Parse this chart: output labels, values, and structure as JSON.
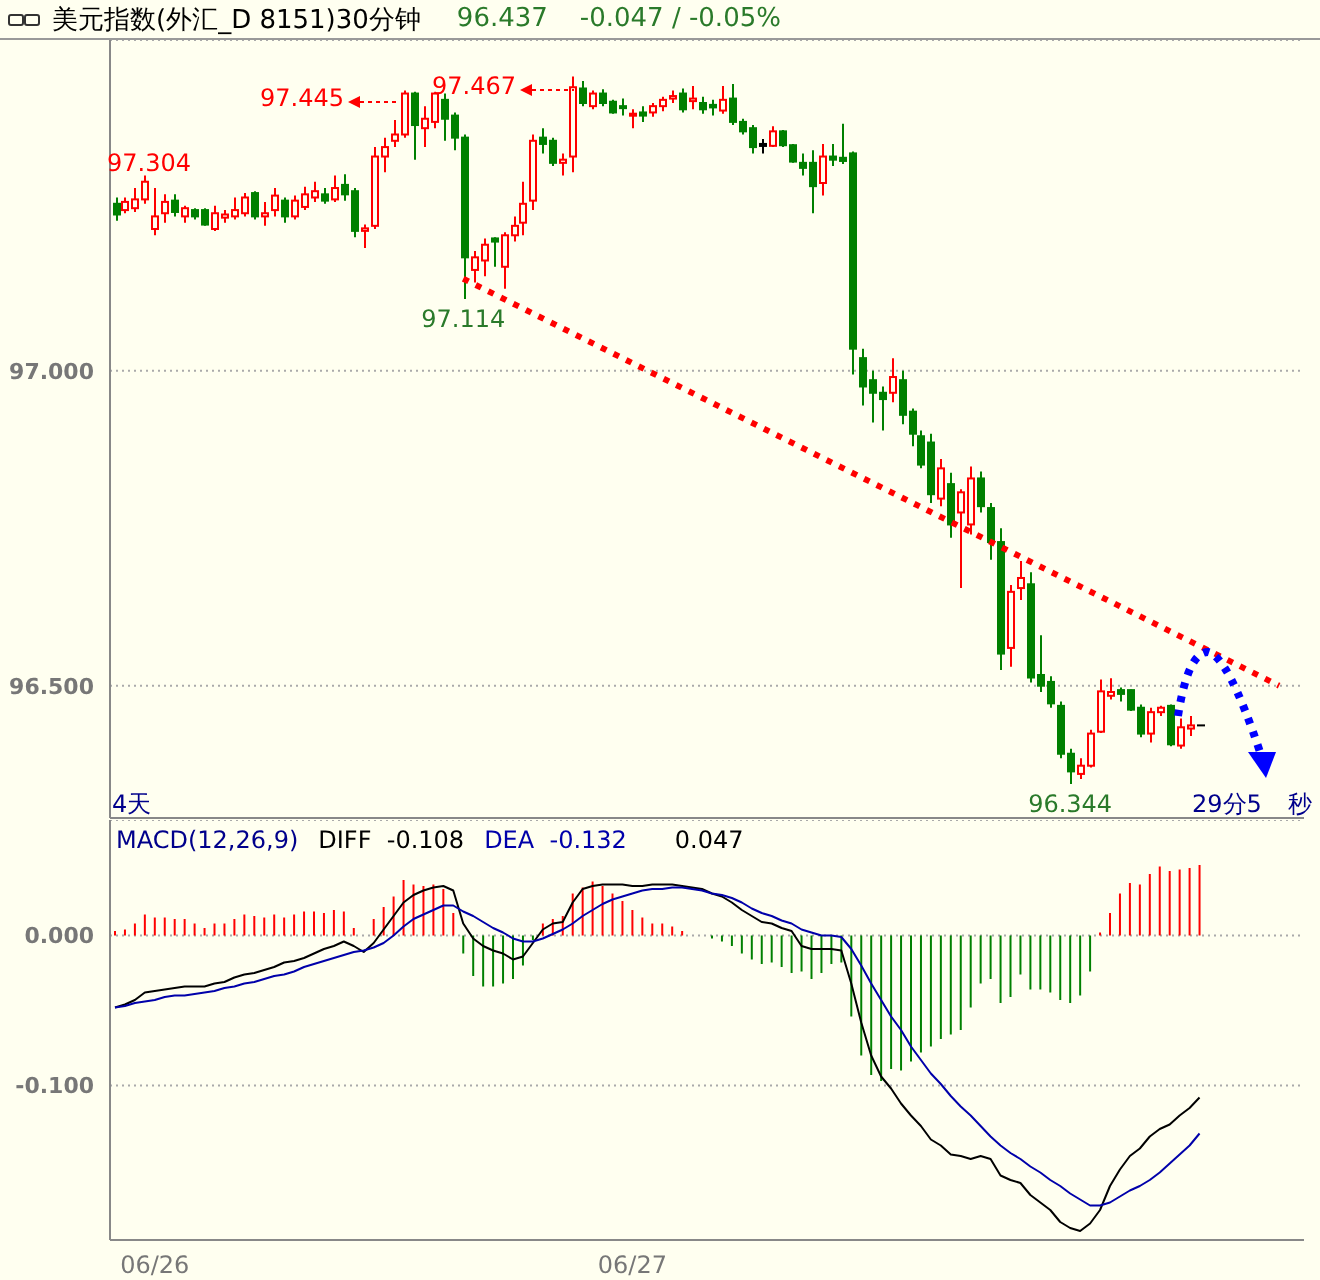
{
  "chart_data": [
    {
      "type": "candlestick",
      "title": "美元指数(外汇_D 8151)30分钟",
      "categories": [
        null,
        null,
        null,
        null,
        null,
        null,
        null,
        null,
        null,
        null,
        null,
        null,
        null,
        null,
        null,
        null,
        null,
        null,
        null,
        null,
        null,
        null,
        null,
        null,
        null,
        null,
        null,
        null,
        null,
        null,
        null,
        null,
        null,
        null,
        null,
        null,
        null,
        null,
        null,
        null,
        null,
        null,
        null,
        null,
        null,
        null,
        null,
        null,
        null,
        null,
        null,
        null,
        null,
        null,
        null,
        null,
        null,
        null,
        null,
        null,
        null,
        null,
        null,
        null,
        null,
        null,
        null,
        null,
        null,
        null,
        null,
        null,
        null,
        null,
        null,
        null,
        null,
        null,
        null,
        null,
        null,
        null,
        null,
        null,
        null,
        null,
        null,
        null,
        null,
        null,
        null,
        null,
        null,
        null,
        null,
        null,
        null,
        null,
        null,
        null,
        null,
        null,
        null,
        null,
        null,
        null,
        null,
        null,
        null,
        null,
        null,
        null,
        null,
        null,
        null,
        null,
        null,
        null,
        null,
        null
      ],
      "ohlc": [
        [
          97.265,
          97.275,
          97.238,
          97.248
        ],
        [
          97.255,
          97.275,
          97.25,
          97.268
        ],
        [
          97.258,
          97.29,
          97.252,
          97.272
        ],
        [
          97.272,
          97.31,
          97.265,
          97.3
        ],
        [
          97.225,
          97.29,
          97.215,
          97.245
        ],
        [
          97.25,
          97.28,
          97.235,
          97.268
        ],
        [
          97.27,
          97.28,
          97.245,
          97.252
        ],
        [
          97.245,
          97.262,
          97.235,
          97.258
        ],
        [
          97.255,
          97.258,
          97.24,
          97.245
        ],
        [
          97.255,
          97.258,
          97.23,
          97.232
        ],
        [
          97.225,
          97.262,
          97.222,
          97.25
        ],
        [
          97.243,
          97.255,
          97.235,
          97.248
        ],
        [
          97.245,
          97.275,
          97.24,
          97.255
        ],
        [
          97.25,
          97.282,
          97.245,
          97.275
        ],
        [
          97.282,
          97.285,
          97.24,
          97.245
        ],
        [
          97.245,
          97.268,
          97.23,
          97.25
        ],
        [
          97.255,
          97.29,
          97.245,
          97.278
        ],
        [
          97.27,
          97.275,
          97.235,
          97.245
        ],
        [
          97.245,
          97.278,
          97.24,
          97.27
        ],
        [
          97.26,
          97.292,
          97.255,
          97.28
        ],
        [
          97.275,
          97.3,
          97.268,
          97.285
        ],
        [
          97.28,
          97.29,
          97.265,
          97.27
        ],
        [
          97.272,
          97.31,
          97.268,
          97.29
        ],
        [
          97.295,
          97.312,
          97.27,
          97.28
        ],
        [
          97.285,
          97.29,
          97.212,
          97.222
        ],
        [
          97.222,
          97.232,
          97.195,
          97.226
        ],
        [
          97.23,
          97.355,
          97.225,
          97.34
        ],
        [
          97.34,
          97.37,
          97.315,
          97.355
        ],
        [
          97.365,
          97.398,
          97.355,
          97.375
        ],
        [
          97.375,
          97.445,
          97.37,
          97.44
        ],
        [
          97.44,
          97.443,
          97.335,
          97.39
        ],
        [
          97.385,
          97.42,
          97.355,
          97.4
        ],
        [
          97.395,
          97.442,
          97.385,
          97.44
        ],
        [
          97.43,
          97.44,
          97.365,
          97.4
        ],
        [
          97.405,
          97.41,
          97.35,
          97.37
        ],
        [
          97.37,
          97.375,
          97.114,
          97.18
        ],
        [
          97.16,
          97.19,
          97.14,
          97.18
        ],
        [
          97.175,
          97.21,
          97.15,
          97.2
        ],
        [
          97.21,
          97.212,
          97.165,
          97.205
        ],
        [
          97.165,
          97.22,
          97.13,
          97.215
        ],
        [
          97.215,
          97.245,
          97.205,
          97.23
        ],
        [
          97.235,
          97.3,
          97.215,
          97.265
        ],
        [
          97.27,
          97.375,
          97.255,
          97.365
        ],
        [
          97.37,
          97.385,
          97.345,
          97.36
        ],
        [
          97.365,
          97.37,
          97.325,
          97.33
        ],
        [
          97.33,
          97.345,
          97.31,
          97.335
        ],
        [
          97.34,
          97.467,
          97.315,
          97.45
        ],
        [
          97.448,
          97.46,
          97.42,
          97.425
        ],
        [
          97.42,
          97.445,
          97.415,
          97.44
        ],
        [
          97.44,
          97.447,
          97.42,
          97.425
        ],
        [
          97.427,
          97.43,
          97.408,
          97.41
        ],
        [
          97.42,
          97.432,
          97.405,
          97.418
        ],
        [
          97.405,
          97.415,
          97.385,
          97.408
        ],
        [
          97.41,
          97.42,
          97.395,
          97.405
        ],
        [
          97.41,
          97.425,
          97.403,
          97.42
        ],
        [
          97.42,
          97.435,
          97.412,
          97.43
        ],
        [
          97.432,
          97.445,
          97.425,
          97.436
        ],
        [
          97.44,
          97.448,
          97.41,
          97.415
        ],
        [
          97.428,
          97.452,
          97.415,
          97.432
        ],
        [
          97.425,
          97.435,
          97.408,
          97.415
        ],
        [
          97.422,
          97.43,
          97.405,
          97.418
        ],
        [
          97.413,
          97.452,
          97.408,
          97.43
        ],
        [
          97.432,
          97.455,
          97.39,
          97.395
        ],
        [
          97.395,
          97.4,
          97.375,
          97.38
        ],
        [
          97.385,
          97.39,
          97.345,
          97.355
        ],
        [
          97.36,
          97.368,
          97.345,
          97.36
        ],
        [
          97.357,
          97.388,
          97.355,
          97.38
        ],
        [
          97.38,
          97.382,
          97.355,
          97.358
        ],
        [
          97.358,
          97.36,
          97.33,
          97.332
        ],
        [
          97.33,
          97.345,
          97.31,
          97.322
        ],
        [
          97.33,
          97.35,
          97.25,
          97.293
        ],
        [
          97.298,
          97.36,
          97.278,
          97.34
        ],
        [
          97.34,
          97.36,
          97.325,
          97.335
        ],
        [
          97.338,
          97.392,
          97.328,
          97.333
        ],
        [
          97.345,
          97.348,
          96.994,
          97.035
        ],
        [
          97.02,
          97.035,
          96.945,
          96.975
        ],
        [
          96.985,
          97.0,
          96.918,
          96.965
        ],
        [
          96.965,
          96.975,
          96.905,
          96.955
        ],
        [
          96.965,
          97.02,
          96.95,
          96.99
        ],
        [
          96.985,
          97.0,
          96.915,
          96.93
        ],
        [
          96.935,
          96.94,
          96.88,
          96.9
        ],
        [
          96.896,
          96.905,
          96.845,
          96.851
        ],
        [
          96.886,
          96.9,
          96.79,
          96.804
        ],
        [
          96.797,
          96.86,
          96.785,
          96.845
        ],
        [
          96.82,
          96.838,
          96.735,
          96.756
        ],
        [
          96.775,
          96.812,
          96.655,
          96.807
        ],
        [
          96.756,
          96.848,
          96.74,
          96.829
        ],
        [
          96.829,
          96.84,
          96.775,
          96.785
        ],
        [
          96.782,
          96.79,
          96.7,
          96.728
        ],
        [
          96.728,
          96.75,
          96.525,
          96.551
        ],
        [
          96.56,
          96.66,
          96.53,
          96.649
        ],
        [
          96.655,
          96.698,
          96.636,
          96.671
        ],
        [
          96.661,
          96.68,
          96.505,
          96.513
        ],
        [
          96.517,
          96.58,
          96.49,
          96.5
        ],
        [
          96.506,
          96.515,
          96.465,
          96.472
        ],
        [
          96.468,
          96.475,
          96.385,
          96.392
        ],
        [
          96.392,
          96.4,
          96.344,
          96.364
        ],
        [
          96.36,
          96.385,
          96.352,
          96.373
        ],
        [
          96.373,
          96.43,
          96.37,
          96.424
        ],
        [
          96.427,
          96.51,
          96.425,
          96.491
        ],
        [
          96.484,
          96.512,
          96.478,
          96.49
        ],
        [
          96.493,
          96.497,
          96.475,
          96.487
        ],
        [
          96.493,
          96.494,
          96.46,
          96.462
        ],
        [
          96.465,
          96.47,
          96.418,
          96.424
        ],
        [
          96.424,
          96.465,
          96.41,
          96.458
        ],
        [
          96.458,
          96.468,
          96.452,
          96.465
        ],
        [
          96.468,
          96.47,
          96.404,
          96.407
        ],
        [
          96.405,
          96.448,
          96.4,
          96.434
        ],
        [
          96.432,
          96.452,
          96.42,
          96.437
        ],
        [
          96.437,
          96.437,
          96.437,
          96.437
        ],
        null,
        null,
        null,
        null,
        null,
        null,
        null,
        null,
        null,
        null
      ],
      "colors": [
        "#008000",
        "#ff0000",
        "#ff0000",
        "#ff0000",
        "#ff0000",
        "#ff0000",
        "#008000",
        "#ff0000",
        "#008000",
        "#008000",
        "#ff0000",
        "#ff0000",
        "#ff0000",
        "#ff0000",
        "#008000",
        "#ff0000",
        "#ff0000",
        "#008000",
        "#ff0000",
        "#ff0000",
        "#ff0000",
        "#008000",
        "#ff0000",
        "#008000",
        "#008000",
        "#ff0000",
        "#ff0000",
        "#ff0000",
        "#ff0000",
        "#ff0000",
        "#008000",
        "#ff0000",
        "#ff0000",
        "#008000",
        "#008000",
        "#008000",
        "#ff0000",
        "#ff0000",
        "#008000",
        "#ff0000",
        "#ff0000",
        "#ff0000",
        "#ff0000",
        "#008000",
        "#008000",
        "#ff0000",
        "#ff0000",
        "#008000",
        "#ff0000",
        "#008000",
        "#008000",
        "#008000",
        "#ff0000",
        "#008000",
        "#ff0000",
        "#ff0000",
        "#ff0000",
        "#008000",
        "#ff0000",
        "#008000",
        "#008000",
        "#ff0000",
        "#008000",
        "#008000",
        "#008000",
        "#000000",
        "#ff0000",
        "#008000",
        "#008000",
        "#008000",
        "#008000",
        "#ff0000",
        "#008000",
        "#008000",
        "#008000",
        "#008000",
        "#008000",
        "#008000",
        "#ff0000",
        "#008000",
        "#008000",
        "#008000",
        "#008000",
        "#ff0000",
        "#008000",
        "#ff0000",
        "#ff0000",
        "#008000",
        "#008000",
        "#008000",
        "#ff0000",
        "#ff0000",
        "#008000",
        "#008000",
        "#008000",
        "#008000",
        "#008000",
        "#ff0000",
        "#ff0000",
        "#ff0000",
        "#ff0000",
        "#008000",
        "#008000",
        "#008000",
        "#ff0000",
        "#ff0000",
        "#008000",
        "#ff0000",
        "#ff0000",
        "#000000",
        null,
        null,
        null,
        null,
        null,
        null,
        null,
        null,
        null,
        null
      ],
      "series": [
        {
          "type": "line",
          "color": "#ff0000",
          "line_style": "dotted",
          "values": [
            null,
            null,
            null,
            null,
            null,
            null,
            null,
            null,
            null,
            null,
            null,
            null,
            null,
            null,
            null,
            null,
            null,
            null,
            null,
            null,
            null,
            null,
            null,
            null,
            null,
            null,
            null,
            null,
            null,
            null,
            null,
            null,
            null,
            null,
            null,
            97.146,
            null,
            null,
            null,
            null,
            null,
            null,
            null,
            null,
            null,
            null,
            null,
            null,
            null,
            null,
            null,
            null,
            null,
            null,
            null,
            null,
            null,
            null,
            null,
            null,
            null,
            null,
            null,
            null,
            null,
            null,
            null,
            null,
            null,
            null,
            null,
            null,
            null,
            null,
            null,
            null,
            null,
            null,
            null,
            null,
            null,
            null,
            null,
            null,
            null,
            null,
            null,
            null,
            null,
            null,
            null,
            null,
            null,
            null,
            null,
            null,
            null,
            null,
            null,
            null,
            null,
            null,
            null,
            null,
            null,
            null,
            null,
            null,
            null,
            null,
            null,
            null,
            null,
            null,
            null,
            null,
            null,
            96.5,
            null,
            null
          ]
        }
      ],
      "ylim": [
        96.29,
        97.525
      ],
      "yticks": [
        {
          "value": 96.5,
          "label": "96.500"
        },
        {
          "value": 97,
          "label": "97.000"
        }
      ],
      "grid": "y",
      "tick_labels": "y",
      "annotations": [
        "96.437",
        "-0.047 / -0.05%",
        "4天",
        "29分5",
        "秒",
        "97.445",
        "97.467",
        {
          "text": "97.304",
          "y": 97.304
        },
        {
          "text": "97.114",
          "y": 97.114
        },
        {
          "text": "96.344",
          "y": 96.344
        }
      ]
    },
    {
      "type": "line",
      "title": "MACD(12,26,9)",
      "categories": [
        null,
        null,
        null,
        null,
        "06/26",
        null,
        null,
        null,
        null,
        null,
        null,
        null,
        null,
        null,
        null,
        null,
        null,
        null,
        null,
        null,
        null,
        null,
        null,
        null,
        null,
        null,
        null,
        null,
        null,
        null,
        null,
        null,
        null,
        null,
        null,
        null,
        null,
        null,
        null,
        null,
        null,
        null,
        null,
        null,
        null,
        null,
        null,
        null,
        null,
        null,
        null,
        null,
        "06/27",
        null,
        null,
        null,
        null,
        null,
        null,
        null,
        null,
        null,
        null,
        null,
        null,
        null,
        null,
        null,
        null,
        null,
        null,
        null,
        null,
        null,
        null,
        null,
        null,
        null,
        null,
        null,
        null,
        null,
        null,
        null,
        null,
        null,
        null,
        null,
        null,
        null,
        null,
        null,
        null,
        null,
        null,
        null,
        null,
        null,
        null,
        null,
        null,
        null,
        null,
        null,
        null,
        null,
        null,
        null,
        null,
        null,
        null,
        null,
        null,
        null,
        null,
        null,
        null,
        null,
        null,
        null
      ],
      "series": [
        {
          "type": "bar",
          "colors": [
            "#ff0000",
            "#ff0000",
            "#ff0000",
            "#ff0000",
            "#ff0000",
            "#ff0000",
            "#ff0000",
            "#ff0000",
            "#ff0000",
            "#ff0000",
            "#ff0000",
            "#ff0000",
            "#ff0000",
            "#ff0000",
            "#ff0000",
            "#ff0000",
            "#ff0000",
            "#ff0000",
            "#ff0000",
            "#ff0000",
            "#ff0000",
            "#ff0000",
            "#ff0000",
            "#ff0000",
            "#ff0000",
            "#ff0000",
            "#ff0000",
            "#ff0000",
            "#ff0000",
            "#ff0000",
            "#ff0000",
            "#ff0000",
            "#ff0000",
            "#ff0000",
            "#ff0000",
            "#008000",
            "#008000",
            "#008000",
            "#008000",
            "#008000",
            "#008000",
            "#008000",
            "#008000",
            "#ff0000",
            "#ff0000",
            "#ff0000",
            "#ff0000",
            "#ff0000",
            "#ff0000",
            "#ff0000",
            "#ff0000",
            "#ff0000",
            "#ff0000",
            "#ff0000",
            "#ff0000",
            "#ff0000",
            "#ff0000",
            "#ff0000",
            "#008000",
            "#008000",
            "#008000",
            "#008000",
            "#008000",
            "#008000",
            "#008000",
            "#008000",
            "#008000",
            "#008000",
            "#008000",
            "#008000",
            "#008000",
            "#008000",
            "#008000",
            "#008000",
            "#008000",
            "#008000",
            "#008000",
            "#008000",
            "#008000",
            "#008000",
            "#008000",
            "#008000",
            "#008000",
            "#008000",
            "#008000",
            "#008000",
            "#008000",
            "#008000",
            "#008000",
            "#008000",
            "#008000",
            "#008000",
            "#008000",
            "#008000",
            "#008000",
            "#008000",
            "#008000",
            "#008000",
            "#008000",
            "#ff0000",
            "#ff0000",
            "#ff0000",
            "#ff0000",
            "#ff0000",
            "#ff0000",
            "#ff0000",
            "#ff0000",
            "#ff0000",
            "#ff0000",
            "#ff0000",
            null,
            null,
            null,
            null,
            null,
            null,
            null,
            null,
            null,
            null
          ],
          "values": [
            0.003,
            0.004,
            0.008,
            0.014,
            0.012,
            0.012,
            0.011,
            0.011,
            0.008,
            0.005,
            0.008,
            0.008,
            0.011,
            0.014,
            0.013,
            0.012,
            0.014,
            0.012,
            0.014,
            0.016,
            0.016,
            0.015,
            0.017,
            0.016,
            0.005,
            null,
            0.011,
            0.019,
            0.026,
            0.037,
            0.034,
            0.033,
            0.034,
            0.031,
            0.015,
            -0.012,
            -0.027,
            -0.034,
            -0.034,
            -0.032,
            -0.029,
            -0.02,
            -0.003,
            0.008,
            0.011,
            0.013,
            0.028,
            0.032,
            0.036,
            0.033,
            0.028,
            0.023,
            0.017,
            0.012,
            0.008,
            0.008,
            0.006,
            0.003,
            null,
            null,
            -0.002,
            -0.004,
            -0.007,
            -0.012,
            -0.016,
            -0.019,
            -0.018,
            -0.021,
            -0.025,
            -0.024,
            -0.029,
            -0.025,
            -0.019,
            -0.018,
            -0.054,
            -0.08,
            -0.093,
            -0.097,
            -0.089,
            -0.09,
            -0.084,
            -0.078,
            -0.074,
            -0.069,
            -0.066,
            -0.063,
            -0.048,
            -0.032,
            -0.029,
            -0.045,
            -0.041,
            -0.026,
            -0.036,
            -0.036,
            -0.038,
            -0.043,
            -0.045,
            -0.04,
            -0.024,
            0.002,
            0.015,
            0.028,
            0.035,
            0.034,
            0.041,
            0.046,
            0.043,
            0.044,
            0.045,
            0.047,
            null,
            null,
            null,
            null,
            null,
            null,
            null,
            null,
            null,
            null
          ]
        },
        {
          "name": "DIFF",
          "color": "#000000",
          "values": [
            -0.048,
            -0.046,
            -0.043,
            -0.038,
            -0.037,
            -0.036,
            -0.035,
            -0.034,
            -0.034,
            -0.034,
            -0.032,
            -0.031,
            -0.028,
            -0.026,
            -0.025,
            -0.023,
            -0.021,
            -0.018,
            -0.017,
            -0.015,
            -0.012,
            -0.009,
            -0.007,
            -0.004,
            -0.007,
            -0.011,
            -0.005,
            0.004,
            0.013,
            0.022,
            0.027,
            0.03,
            0.032,
            0.033,
            0.03,
            0.008,
            -0.002,
            -0.007,
            -0.01,
            -0.012,
            -0.016,
            -0.014,
            -0.005,
            0.004,
            0.008,
            0.009,
            0.022,
            0.031,
            0.033,
            0.034,
            0.034,
            0.034,
            0.033,
            0.033,
            0.034,
            0.034,
            0.034,
            0.033,
            0.032,
            0.031,
            0.028,
            0.026,
            0.022,
            0.017,
            0.013,
            0.009,
            0.008,
            0.005,
            0.003,
            -0.007,
            -0.009,
            -0.009,
            -0.009,
            -0.01,
            -0.032,
            -0.058,
            -0.08,
            -0.094,
            -0.102,
            -0.112,
            -0.12,
            -0.127,
            -0.136,
            -0.14,
            -0.146,
            -0.147,
            -0.149,
            -0.147,
            -0.149,
            -0.16,
            -0.163,
            -0.165,
            -0.173,
            -0.178,
            -0.183,
            -0.191,
            -0.195,
            -0.197,
            -0.192,
            -0.183,
            -0.167,
            -0.156,
            -0.147,
            -0.142,
            -0.134,
            -0.129,
            -0.126,
            -0.12,
            -0.115,
            -0.108,
            null,
            null,
            null,
            null,
            null,
            null,
            null,
            null,
            null,
            null
          ]
        },
        {
          "name": "DEA",
          "color": "#0000aa",
          "values": [
            -0.048,
            -0.047,
            -0.045,
            -0.044,
            -0.043,
            -0.041,
            -0.04,
            -0.04,
            -0.039,
            -0.038,
            -0.037,
            -0.035,
            -0.034,
            -0.032,
            -0.031,
            -0.029,
            -0.027,
            -0.026,
            -0.024,
            -0.021,
            -0.019,
            -0.017,
            -0.015,
            -0.013,
            -0.011,
            -0.01,
            -0.008,
            -0.005,
            0.0,
            0.006,
            0.011,
            0.014,
            0.017,
            0.02,
            0.02,
            0.016,
            0.013,
            0.009,
            0.005,
            0.002,
            -0.002,
            -0.004,
            -0.004,
            -0.002,
            0.001,
            0.004,
            0.008,
            0.013,
            0.017,
            0.021,
            0.024,
            0.026,
            0.028,
            0.03,
            0.031,
            0.031,
            0.032,
            0.032,
            0.031,
            0.03,
            0.028,
            0.027,
            0.025,
            0.022,
            0.018,
            0.015,
            0.013,
            0.01,
            0.008,
            0.004,
            0.002,
            0.0,
            0.0,
            -0.001,
            -0.009,
            -0.02,
            -0.032,
            -0.043,
            -0.054,
            -0.063,
            -0.074,
            -0.083,
            -0.092,
            -0.099,
            -0.107,
            -0.114,
            -0.12,
            -0.127,
            -0.134,
            -0.14,
            -0.145,
            -0.149,
            -0.154,
            -0.158,
            -0.163,
            -0.167,
            -0.172,
            -0.176,
            -0.18,
            -0.18,
            -0.178,
            -0.174,
            -0.17,
            -0.167,
            -0.163,
            -0.158,
            -0.152,
            -0.146,
            -0.14,
            -0.132,
            null,
            null,
            null,
            null,
            null,
            null,
            null,
            null,
            null,
            null
          ]
        }
      ],
      "ylim": [
        -0.203,
        0.077
      ],
      "yticks": [
        {
          "value": -0.1,
          "label": "-0.100"
        },
        {
          "value": 0,
          "label": "0.000"
        }
      ],
      "grid": "y",
      "legend": "top left",
      "annotations": [
        "-0.108",
        "-0.132",
        "0.047"
      ]
    }
  ]
}
